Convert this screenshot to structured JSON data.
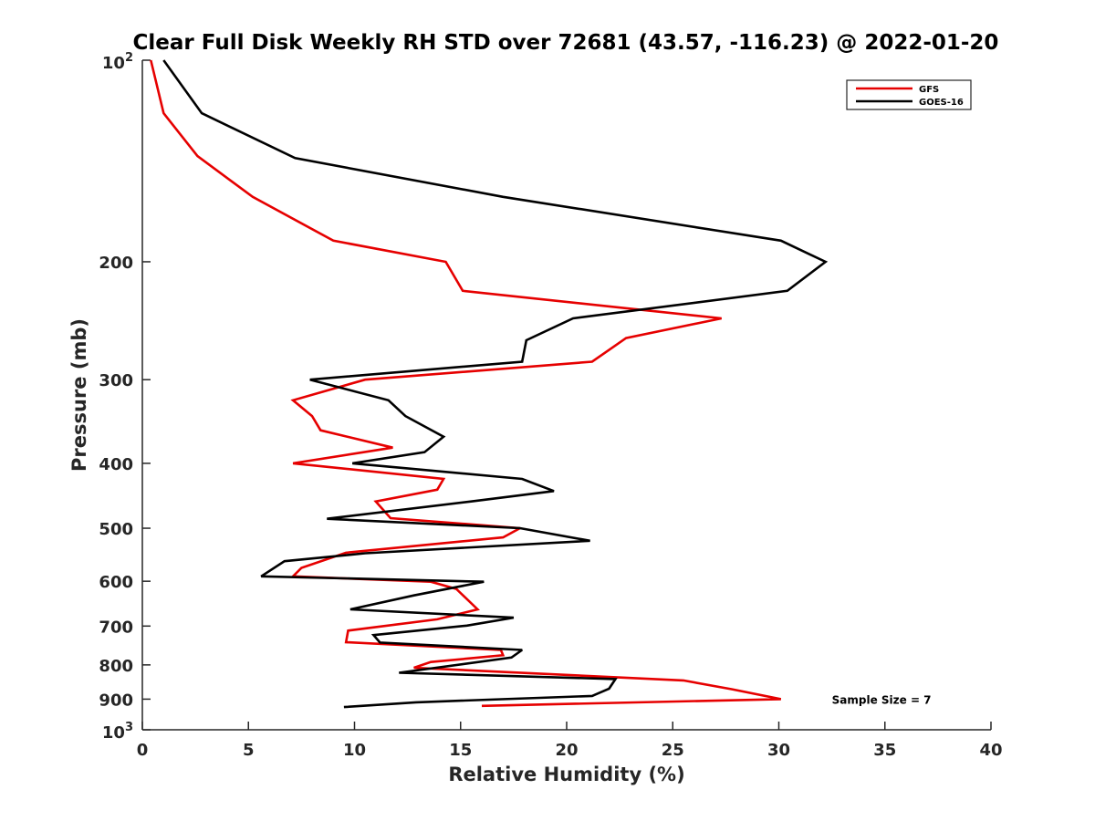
{
  "chart_data": {
    "type": "line",
    "title": "Clear Full Disk Weekly RH STD over 72681 (43.57, -116.23) @ 2022-01-20",
    "xlabel": "Relative Humidity (%)",
    "ylabel": "Pressure (mb)",
    "xlim": [
      0,
      40
    ],
    "ylim": [
      100,
      1000
    ],
    "y_scale": "log",
    "y_reversed": true,
    "grid": false,
    "legend_position": "top-right",
    "x_ticks": [
      "0",
      "5",
      "10",
      "15",
      "20",
      "25",
      "30",
      "35",
      "40"
    ],
    "y_ticks": [
      {
        "base": "10",
        "exp": "2"
      },
      {
        "label": "200"
      },
      {
        "label": "300"
      },
      {
        "label": "400"
      },
      {
        "label": "500"
      },
      {
        "label": "600"
      },
      {
        "label": "700"
      },
      {
        "label": "800"
      },
      {
        "label": "900"
      },
      {
        "base": "10",
        "exp": "3"
      }
    ],
    "series": [
      {
        "name": "GFS",
        "color": "#e60000",
        "x": [
          0.4,
          1.0,
          2.6,
          5.2,
          9.0,
          14.3,
          15.1,
          27.3,
          22.8,
          21.2,
          10.5,
          7.1,
          8.0,
          8.4,
          11.8,
          7.1,
          14.2,
          13.9,
          11.0,
          11.7,
          17.8,
          17.0,
          9.6,
          7.5,
          7.1,
          13.6,
          14.8,
          15.8,
          13.9,
          9.7,
          9.6,
          16.9,
          17.0,
          13.6,
          12.8,
          25.5,
          27.8,
          30.1,
          16.0
        ],
        "y": [
          100,
          120,
          139,
          160,
          186,
          200,
          221,
          243,
          260,
          282,
          300,
          322,
          340,
          357,
          379,
          400,
          422,
          438,
          456,
          483,
          500,
          516,
          544,
          573,
          590,
          601,
          616,
          661,
          684,
          711,
          740,
          760,
          774,
          792,
          808,
          844,
          870,
          900,
          921
        ]
      },
      {
        "name": "GOES-16",
        "color": "#000000",
        "x": [
          1.0,
          2.8,
          7.2,
          17.0,
          30.1,
          32.2,
          30.4,
          20.3,
          18.1,
          17.9,
          7.9,
          11.6,
          12.4,
          14.2,
          13.3,
          9.9,
          17.9,
          19.4,
          15.5,
          8.7,
          17.8,
          21.1,
          10.5,
          6.7,
          5.6,
          16.1,
          12.8,
          9.8,
          17.5,
          15.3,
          10.9,
          11.2,
          17.9,
          17.4,
          12.1,
          22.3,
          22.0,
          21.2,
          12.9,
          9.5
        ],
        "y": [
          100,
          120,
          140,
          160,
          186,
          200,
          221,
          243,
          262,
          282,
          300,
          322,
          340,
          365,
          385,
          400,
          422,
          440,
          456,
          484,
          500,
          522,
          545,
          560,
          590,
          601,
          630,
          661,
          680,
          699,
          722,
          741,
          760,
          780,
          822,
          840,
          868,
          890,
          910,
          925
        ]
      }
    ],
    "annotations": [
      {
        "text": "Sample Size = 7",
        "x": 32.5,
        "y": 900
      }
    ]
  }
}
